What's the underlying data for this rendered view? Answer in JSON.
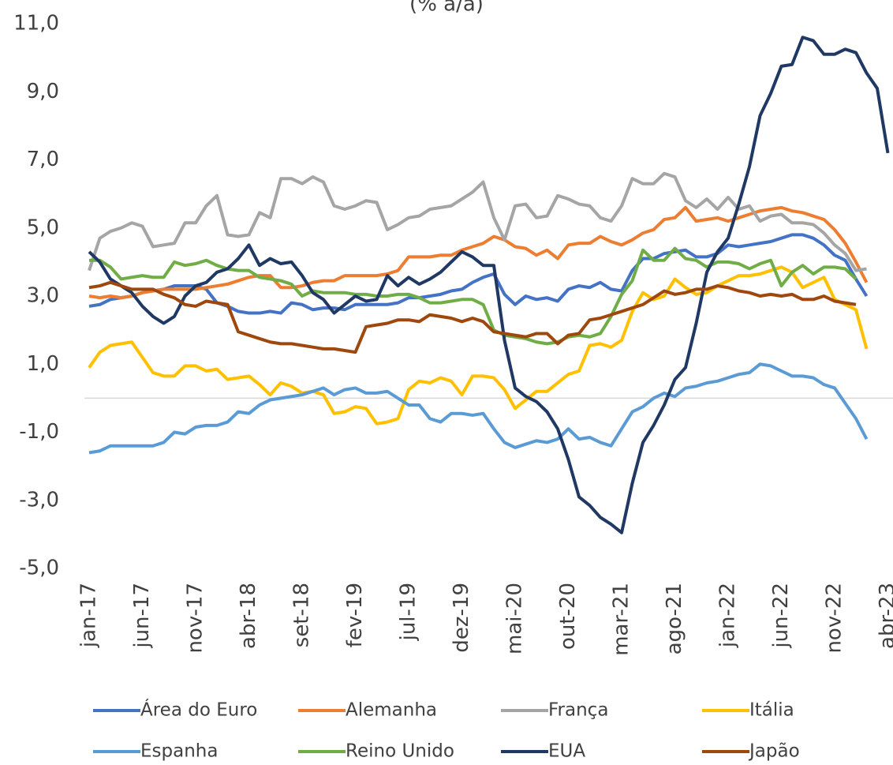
{
  "chart_data": {
    "type": "line",
    "title": "(% a/a)",
    "categories": [
      "jan-17",
      null,
      null,
      null,
      null,
      "jun-17",
      null,
      null,
      null,
      null,
      "nov-17",
      null,
      null,
      null,
      null,
      "abr-18",
      null,
      null,
      null,
      null,
      "set-18",
      null,
      null,
      null,
      null,
      "fev-19",
      null,
      null,
      null,
      null,
      "jul-19",
      null,
      null,
      null,
      null,
      "dez-19",
      null,
      null,
      null,
      null,
      "mai-20",
      null,
      null,
      null,
      null,
      "out-20",
      null,
      null,
      null,
      null,
      "mar-21",
      null,
      null,
      null,
      null,
      "ago-21",
      null,
      null,
      null,
      null,
      "jan-22",
      null,
      null,
      null,
      null,
      "jun-22",
      null,
      null,
      null,
      null,
      "nov-22",
      null,
      null,
      null,
      null,
      "abr-23"
    ],
    "ylim": [
      -5,
      11
    ],
    "yticks": [
      {
        "value": -5,
        "label": "-5,0"
      },
      {
        "value": -3,
        "label": "-3,0"
      },
      {
        "value": -1,
        "label": "-1,0"
      },
      {
        "value": 1,
        "label": "1,0"
      },
      {
        "value": 3,
        "label": "3,0"
      },
      {
        "value": 5,
        "label": "5,0"
      },
      {
        "value": 7,
        "label": "7,0"
      },
      {
        "value": 9,
        "label": "9,0"
      },
      {
        "value": 11,
        "label": "11,0"
      }
    ],
    "legend": "bottom",
    "series": [
      {
        "name": "Área do Euro",
        "color": "#4472c4",
        "values": [
          2.7,
          2.75,
          2.9,
          2.95,
          3.0,
          3.1,
          3.15,
          3.2,
          3.3,
          3.3,
          3.3,
          3.2,
          2.8,
          2.7,
          2.55,
          2.5,
          2.5,
          2.55,
          2.5,
          2.8,
          2.75,
          2.6,
          2.65,
          2.65,
          2.6,
          2.75,
          2.75,
          2.75,
          2.75,
          2.8,
          2.95,
          2.95,
          3.0,
          3.05,
          3.15,
          3.2,
          3.4,
          3.55,
          3.65,
          3.05,
          2.75,
          3.0,
          2.9,
          2.95,
          2.85,
          3.2,
          3.3,
          3.25,
          3.4,
          3.2,
          3.15,
          3.75,
          4.1,
          4.1,
          4.25,
          4.3,
          4.35,
          4.15,
          4.15,
          4.25,
          4.5,
          4.45,
          4.5,
          4.55,
          4.6,
          4.7,
          4.8,
          4.8,
          4.7,
          4.5,
          4.2,
          4.05,
          3.5,
          3.0,
          null,
          null
        ]
      },
      {
        "name": "Alemanha",
        "color": "#ed7d31",
        "values": [
          3.0,
          2.95,
          3.0,
          2.95,
          3.0,
          3.1,
          3.15,
          3.2,
          3.2,
          3.2,
          3.2,
          3.25,
          3.3,
          3.35,
          3.45,
          3.55,
          3.6,
          3.6,
          3.25,
          3.25,
          3.3,
          3.4,
          3.45,
          3.45,
          3.6,
          3.6,
          3.6,
          3.6,
          3.65,
          3.75,
          4.15,
          4.15,
          4.15,
          4.2,
          4.2,
          4.35,
          4.45,
          4.55,
          4.75,
          4.65,
          4.45,
          4.4,
          4.2,
          4.35,
          4.1,
          4.5,
          4.55,
          4.55,
          4.75,
          4.6,
          4.5,
          4.65,
          4.85,
          4.95,
          5.25,
          5.3,
          5.6,
          5.2,
          5.25,
          5.3,
          5.2,
          5.3,
          5.4,
          5.5,
          5.55,
          5.6,
          5.5,
          5.45,
          5.35,
          5.25,
          4.95,
          4.55,
          4.0,
          3.4,
          null,
          null
        ]
      },
      {
        "name": "França",
        "color": "#a5a5a5",
        "values": [
          3.75,
          4.7,
          4.9,
          5.0,
          5.15,
          5.05,
          4.45,
          4.5,
          4.55,
          5.15,
          5.15,
          5.65,
          5.95,
          4.8,
          4.75,
          4.8,
          5.45,
          5.3,
          6.45,
          6.45,
          6.3,
          6.5,
          6.35,
          5.65,
          5.55,
          5.65,
          5.8,
          5.75,
          4.95,
          5.1,
          5.3,
          5.35,
          5.55,
          5.6,
          5.65,
          5.85,
          6.05,
          6.35,
          5.3,
          4.65,
          5.65,
          5.7,
          5.3,
          5.35,
          5.95,
          5.85,
          5.7,
          5.65,
          5.3,
          5.2,
          5.65,
          6.45,
          6.3,
          6.3,
          6.6,
          6.5,
          5.8,
          5.6,
          5.85,
          5.55,
          5.9,
          5.55,
          5.65,
          5.2,
          5.35,
          5.4,
          5.15,
          5.15,
          5.1,
          4.85,
          4.5,
          4.25,
          3.75,
          3.8,
          null,
          null
        ]
      },
      {
        "name": "Itália",
        "color": "#ffc000",
        "values": [
          0.9,
          1.35,
          1.55,
          1.6,
          1.65,
          1.2,
          0.75,
          0.65,
          0.65,
          0.95,
          0.95,
          0.8,
          0.85,
          0.55,
          0.6,
          0.65,
          0.4,
          0.1,
          0.45,
          0.35,
          0.15,
          0.2,
          0.1,
          -0.45,
          -0.4,
          -0.25,
          -0.3,
          -0.75,
          -0.7,
          -0.6,
          0.25,
          0.5,
          0.45,
          0.6,
          0.5,
          0.1,
          0.65,
          0.65,
          0.6,
          0.25,
          -0.3,
          -0.05,
          0.2,
          0.2,
          0.45,
          0.7,
          0.8,
          1.55,
          1.6,
          1.5,
          1.7,
          2.55,
          3.1,
          2.9,
          3.0,
          3.5,
          3.25,
          3.05,
          3.1,
          3.3,
          3.45,
          3.6,
          3.6,
          3.65,
          3.75,
          3.85,
          3.7,
          3.25,
          3.4,
          3.55,
          2.9,
          2.75,
          2.6,
          1.45,
          null,
          null
        ]
      },
      {
        "name": "Espanha",
        "color": "#5b9bd5",
        "values": [
          -1.6,
          -1.55,
          -1.4,
          -1.4,
          -1.4,
          -1.4,
          -1.4,
          -1.3,
          -1.0,
          -1.05,
          -0.85,
          -0.8,
          -0.8,
          -0.7,
          -0.4,
          -0.45,
          -0.2,
          -0.05,
          0.0,
          0.05,
          0.1,
          0.2,
          0.3,
          0.1,
          0.25,
          0.3,
          0.15,
          0.15,
          0.2,
          0.0,
          -0.2,
          -0.2,
          -0.6,
          -0.7,
          -0.45,
          -0.45,
          -0.5,
          -0.45,
          -0.9,
          -1.3,
          -1.45,
          -1.35,
          -1.25,
          -1.3,
          -1.2,
          -0.9,
          -1.2,
          -1.15,
          -1.3,
          -1.4,
          -0.9,
          -0.4,
          -0.25,
          0.0,
          0.15,
          0.05,
          0.3,
          0.35,
          0.45,
          0.5,
          0.6,
          0.7,
          0.75,
          1.0,
          0.95,
          0.8,
          0.65,
          0.65,
          0.6,
          0.4,
          0.3,
          -0.15,
          -0.6,
          -1.2,
          null,
          null
        ]
      },
      {
        "name": "Reino Unido",
        "color": "#70ad47",
        "values": [
          4.05,
          4.05,
          3.85,
          3.5,
          3.55,
          3.6,
          3.55,
          3.55,
          4.0,
          3.9,
          3.95,
          4.05,
          3.9,
          3.8,
          3.75,
          3.75,
          3.55,
          3.5,
          3.45,
          3.35,
          3.0,
          3.15,
          3.1,
          3.1,
          3.1,
          3.05,
          3.05,
          3.0,
          3.0,
          3.05,
          3.05,
          2.95,
          2.8,
          2.8,
          2.85,
          2.9,
          2.9,
          2.75,
          2.0,
          1.85,
          1.8,
          1.75,
          1.65,
          1.6,
          1.65,
          1.8,
          1.85,
          1.8,
          1.9,
          2.4,
          3.05,
          3.45,
          4.35,
          4.05,
          4.05,
          4.4,
          4.1,
          4.05,
          3.85,
          4.0,
          4.0,
          3.95,
          3.8,
          3.95,
          4.05,
          3.3,
          3.7,
          3.9,
          3.65,
          3.85,
          3.85,
          3.8,
          3.5,
          null,
          null,
          null
        ]
      },
      {
        "name": "EUA",
        "color": "#203864",
        "values": [
          4.3,
          4.0,
          3.5,
          3.3,
          3.1,
          2.7,
          2.4,
          2.2,
          2.4,
          3.0,
          3.3,
          3.4,
          3.7,
          3.8,
          4.1,
          4.5,
          3.9,
          4.1,
          3.95,
          4.0,
          3.6,
          3.1,
          2.9,
          2.5,
          2.75,
          3.0,
          2.85,
          2.9,
          3.6,
          3.3,
          3.55,
          3.35,
          3.5,
          3.7,
          4.0,
          4.3,
          4.15,
          3.9,
          3.9,
          1.7,
          0.3,
          0.05,
          -0.1,
          -0.4,
          -0.9,
          -1.8,
          -2.9,
          -3.15,
          -3.5,
          -3.7,
          -3.95,
          -2.5,
          -1.3,
          -0.8,
          -0.2,
          0.55,
          0.9,
          2.2,
          3.7,
          4.3,
          4.7,
          5.7,
          6.8,
          8.3,
          8.95,
          9.75,
          9.8,
          10.6,
          10.5,
          10.1,
          10.1,
          10.25,
          10.15,
          9.55,
          9.1,
          7.2
        ]
      },
      {
        "name": "Japão",
        "color": "#9e480e",
        "values": [
          3.25,
          3.3,
          3.4,
          3.3,
          3.2,
          3.2,
          3.2,
          3.05,
          2.95,
          2.75,
          2.7,
          2.85,
          2.8,
          2.75,
          1.95,
          1.85,
          1.75,
          1.65,
          1.6,
          1.6,
          1.55,
          1.5,
          1.45,
          1.45,
          1.4,
          1.35,
          2.1,
          2.15,
          2.2,
          2.3,
          2.3,
          2.25,
          2.45,
          2.4,
          2.35,
          2.25,
          2.35,
          2.25,
          1.95,
          1.9,
          1.85,
          1.8,
          1.9,
          1.9,
          1.6,
          1.85,
          1.9,
          2.3,
          2.35,
          2.45,
          2.55,
          2.65,
          2.75,
          2.95,
          3.15,
          3.05,
          3.1,
          3.2,
          3.2,
          3.3,
          3.25,
          3.15,
          3.1,
          3.0,
          3.05,
          3.0,
          3.05,
          2.9,
          2.9,
          3.0,
          2.85,
          2.8,
          2.75,
          null,
          null,
          null
        ]
      }
    ]
  }
}
